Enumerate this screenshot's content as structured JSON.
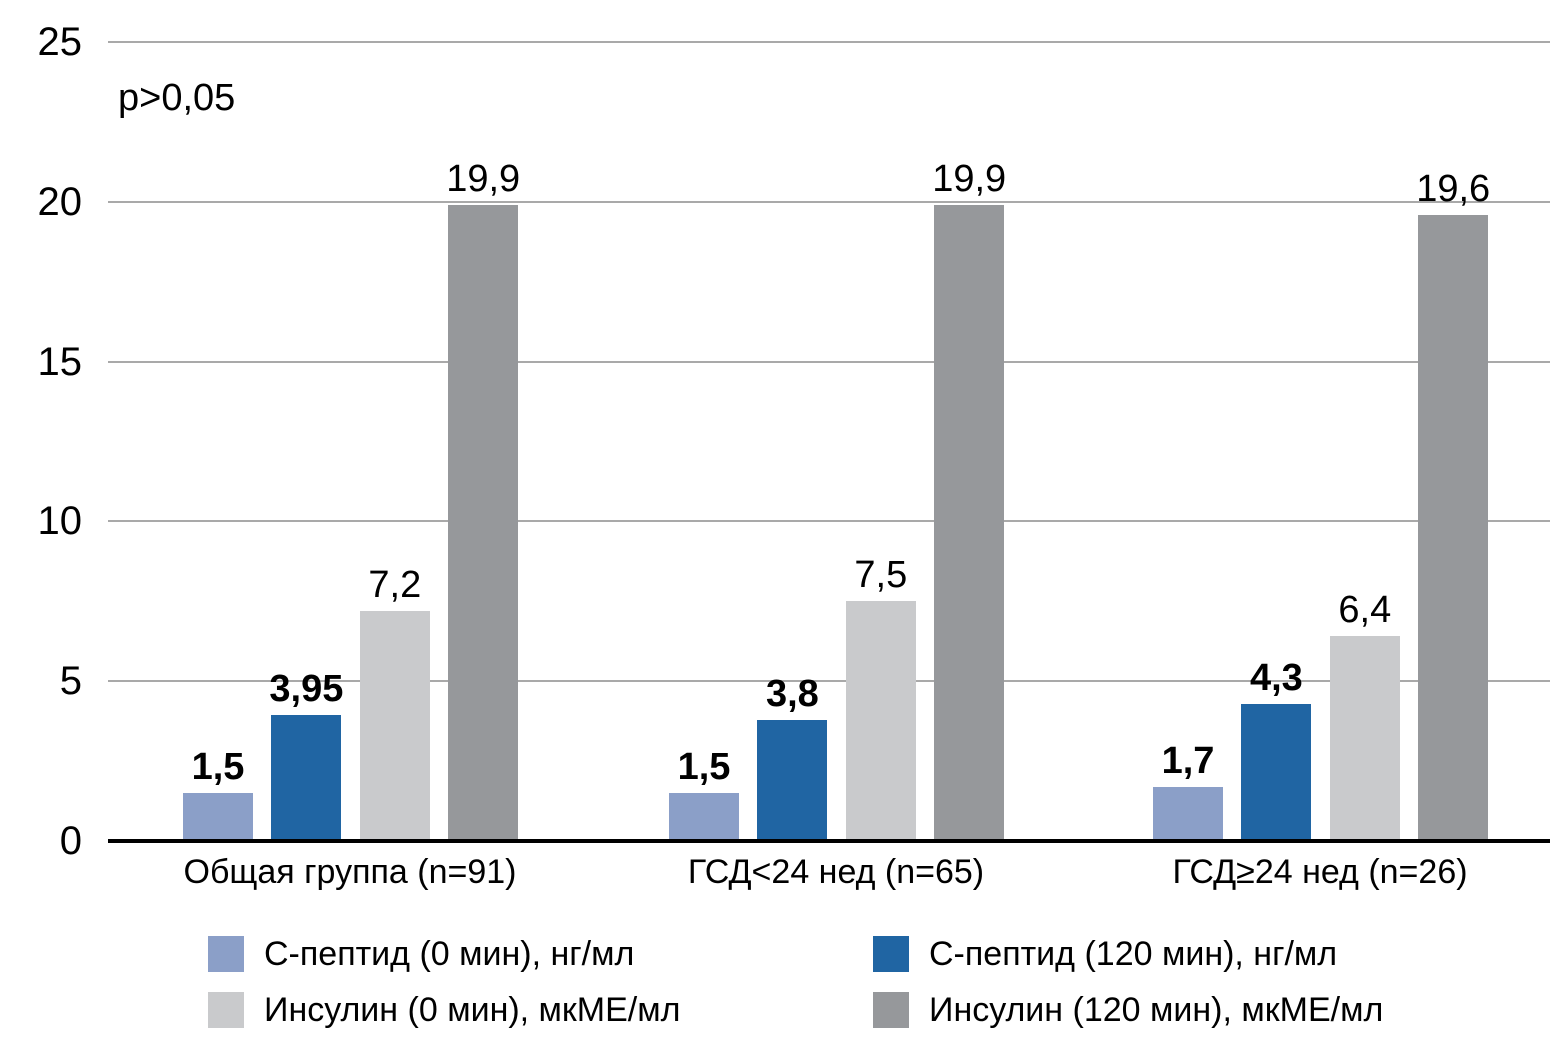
{
  "chart_data": {
    "type": "bar",
    "title": "",
    "annotation": "p>0,05",
    "categories": [
      "Общая группа (n=91)",
      "ГСД<24 нед (n=65)",
      "ГСД≥24 нед (n=26)"
    ],
    "series": [
      {
        "name": "С-пептид (0 мин), нг/мл",
        "color": "#8B9FC8",
        "bold_value_labels": true,
        "values": [
          1.5,
          1.5,
          1.7
        ],
        "value_labels": [
          "1,5",
          "1,5",
          "1,7"
        ]
      },
      {
        "name": "С-пептид (120 мин), нг/мл",
        "color": "#2065A3",
        "bold_value_labels": true,
        "values": [
          3.95,
          3.8,
          4.3
        ],
        "value_labels": [
          "3,95",
          "3,8",
          "4,3"
        ]
      },
      {
        "name": "Инсулин (0 мин), мкМЕ/мл",
        "color": "#C9CACC",
        "bold_value_labels": false,
        "values": [
          7.2,
          7.5,
          6.4
        ],
        "value_labels": [
          "7,2",
          "7,5",
          "6,4"
        ]
      },
      {
        "name": "Инсулин (120 мин), мкМЕ/мл",
        "color": "#96989B",
        "bold_value_labels": false,
        "values": [
          19.9,
          19.9,
          19.6
        ],
        "value_labels": [
          "19,9",
          "19,9",
          "19,6"
        ]
      }
    ],
    "y_axis": {
      "min": 0,
      "max": 25,
      "tick_step": 5,
      "ticks": [
        0,
        5,
        10,
        15,
        20,
        25
      ]
    },
    "grid": true,
    "legend_position": "bottom",
    "legend_grid": [
      [
        0,
        1
      ],
      [
        2,
        3
      ]
    ],
    "colors": {
      "gridline": "#a9a9a9",
      "axis": "#000000",
      "text": "#000000",
      "background": "#ffffff"
    }
  }
}
